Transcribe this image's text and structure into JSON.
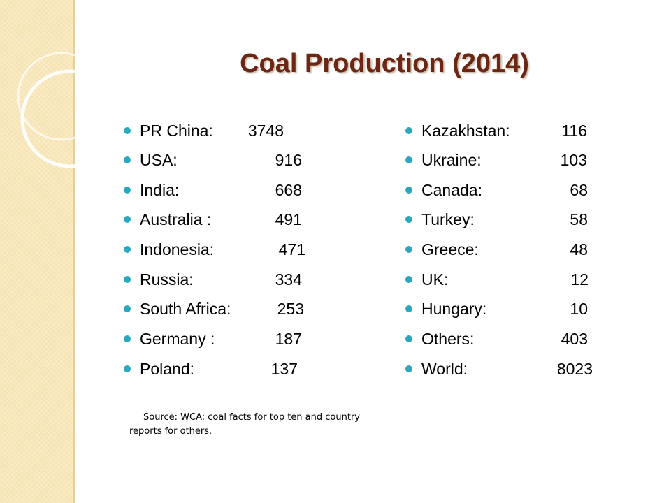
{
  "title": "Coal Production (2014)",
  "left_column": [
    {
      "name": "PR China:",
      "value": "3748"
    },
    {
      "name": "USA:",
      "value": "916"
    },
    {
      "name": "India:",
      "value": "668"
    },
    {
      "name": "Australia :",
      "value": "491"
    },
    {
      "name": "Indonesia:",
      "value": "471"
    },
    {
      "name": "Russia:",
      "value": "334"
    },
    {
      "name": "South Africa:",
      "value": "253"
    },
    {
      "name": "Germany :",
      "value": "187"
    },
    {
      "name": "Poland:",
      "value": "137"
    }
  ],
  "right_column": [
    {
      "name": "Kazakhstan:",
      "value": "116"
    },
    {
      "name": "Ukraine:",
      "value": "103"
    },
    {
      "name": "Canada:",
      "value": "68"
    },
    {
      "name": "Turkey:",
      "value": "58"
    },
    {
      "name": "Greece:",
      "value": "48"
    },
    {
      "name": "UK:",
      "value": "12"
    },
    {
      "name": "Hungary:",
      "value": "10"
    },
    {
      "name": "Others:",
      "value": "403"
    },
    {
      "name": "World:",
      "value": "8023"
    }
  ],
  "source": "Source: WCA: coal facts for top ten and country reports for  others.",
  "colors": {
    "title": "#6b2614",
    "bullet": "#2aa8bf",
    "sidebar": "#f6e4b4"
  }
}
